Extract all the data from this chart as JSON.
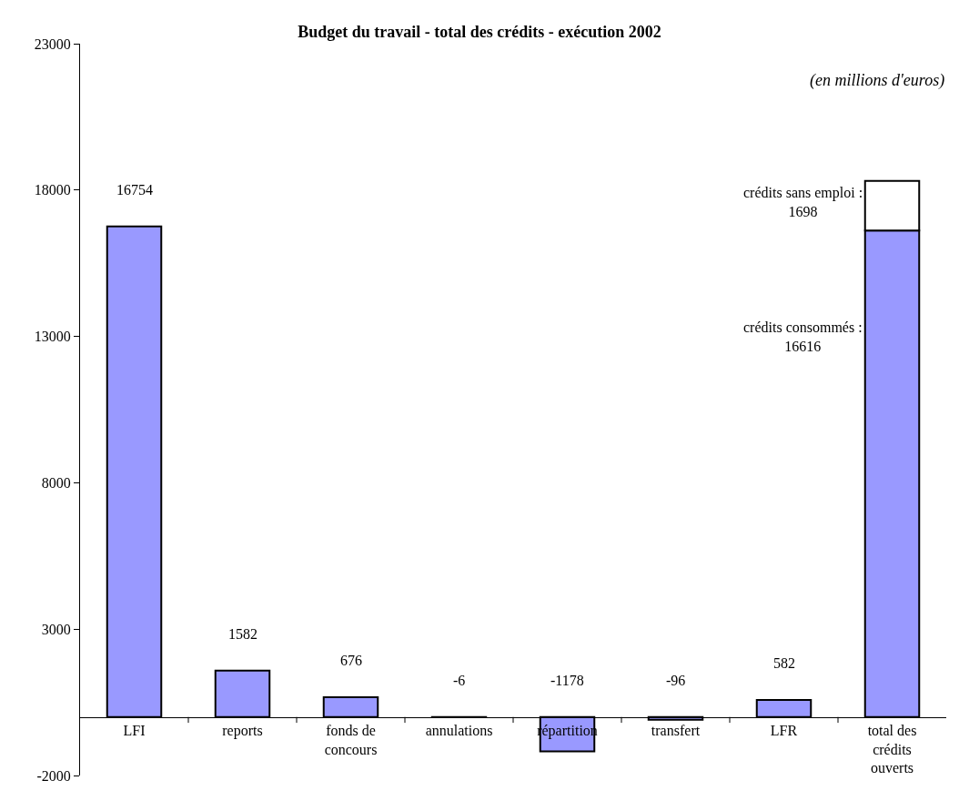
{
  "chart_data": {
    "type": "bar",
    "title": "Budget du travail - total des crédits - exécution 2002",
    "stacked": true,
    "categories": [
      "LFI",
      "reports",
      "fonds de concours",
      "annulations",
      "répartition",
      "transfert",
      "LFR",
      "total des crédits ouverts"
    ],
    "series": [
      {
        "color": "#9999ff",
        "values": [
          16754,
          1582,
          676,
          -6,
          -1178,
          -96,
          582,
          16616
        ],
        "value_labels": [
          "16754",
          "1582",
          "676",
          "-6",
          "-1178",
          "-96",
          "582",
          null
        ]
      },
      {
        "color": "#ffffff",
        "values": [
          null,
          null,
          null,
          null,
          null,
          null,
          null,
          1698
        ]
      }
    ],
    "ylim": [
      -2000,
      23000
    ],
    "yticks": [
      -2000,
      3000,
      8000,
      13000,
      18000,
      23000
    ],
    "grid": false,
    "annotations": [
      "(en millions d'euros)",
      {
        "text": "crédits sans emploi : 1698",
        "x": "total des crédits ouverts",
        "y": 18314
      },
      "crédits consommés : 16616"
    ]
  }
}
